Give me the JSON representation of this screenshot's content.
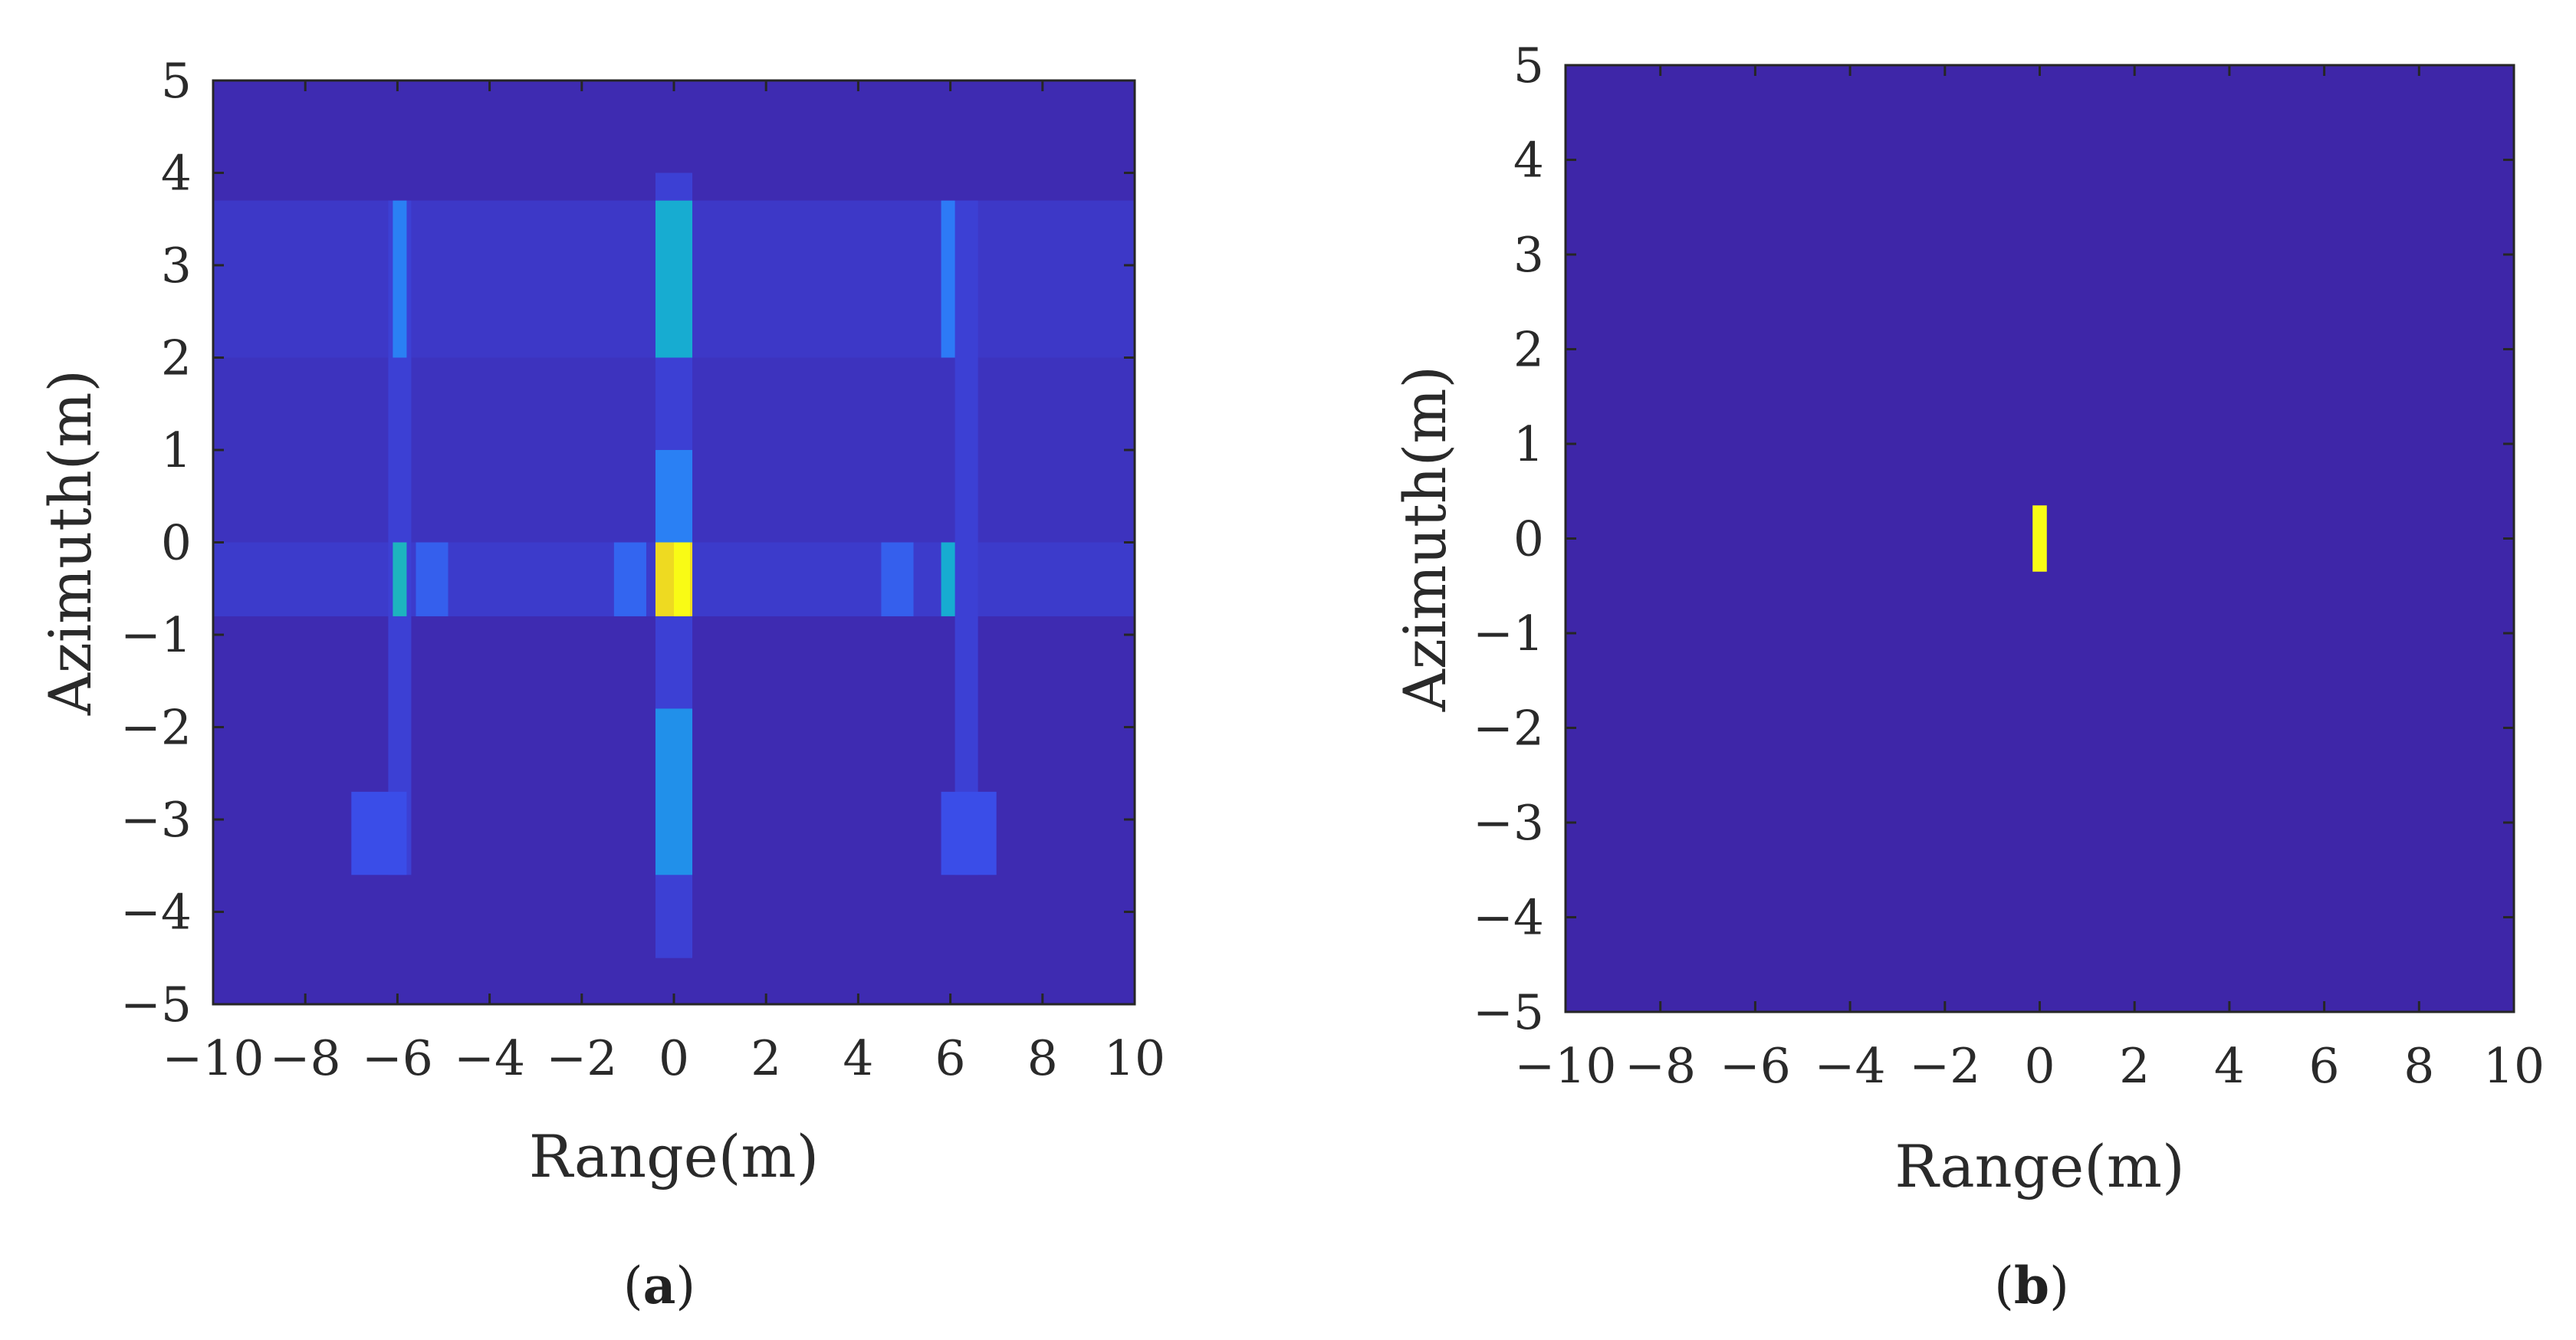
{
  "chart_data": [
    {
      "type": "heatmap",
      "panel_label": "a",
      "xlabel": "Range(m)",
      "ylabel": "Azimuth(m)",
      "xlim": [
        -10,
        10
      ],
      "ylim": [
        -5,
        5
      ],
      "xticks": [
        -10,
        -8,
        -6,
        -4,
        -2,
        0,
        2,
        4,
        6,
        8,
        10
      ],
      "yticks": [
        -5,
        -4,
        -3,
        -2,
        -1,
        0,
        1,
        2,
        3,
        4,
        5
      ],
      "xtick_labels": [
        "−10",
        "−8",
        "−6",
        "−4",
        "−2",
        "0",
        "2",
        "4",
        "6",
        "8",
        "10"
      ],
      "ytick_labels": [
        "−5",
        "−4",
        "−3",
        "−2",
        "−1",
        "0",
        "1",
        "2",
        "3",
        "4",
        "5"
      ],
      "colormap": [
        "#3e26a8",
        "#3b4be7",
        "#2c7cf7",
        "#14a8d9",
        "#25c0a4",
        "#8dc43a",
        "#e6c02b",
        "#f9fb15"
      ],
      "background_value": 0.02,
      "cells": [
        {
          "x": [
            -10,
            10
          ],
          "y": [
            -0.8,
            3.7
          ],
          "v": 0.05
        },
        {
          "x": [
            -10,
            10
          ],
          "y": [
            -0.8,
            0.0
          ],
          "v": 0.08
        },
        {
          "x": [
            -10,
            10
          ],
          "y": [
            2.0,
            3.7
          ],
          "v": 0.07
        },
        {
          "x": [
            -0.4,
            0.4
          ],
          "y": [
            -4.5,
            4.0
          ],
          "v": 0.1
        },
        {
          "x": [
            -0.4,
            0.4
          ],
          "y": [
            -3.6,
            -1.8
          ],
          "v": 0.35
        },
        {
          "x": [
            -0.4,
            0.4
          ],
          "y": [
            0.0,
            1.0
          ],
          "v": 0.3
        },
        {
          "x": [
            -0.4,
            0.4
          ],
          "y": [
            2.0,
            3.7
          ],
          "v": 0.45
        },
        {
          "x": [
            -0.4,
            0.4
          ],
          "y": [
            -0.8,
            0.0
          ],
          "v": 0.92
        },
        {
          "x": [
            0.0,
            0.35
          ],
          "y": [
            -0.8,
            0.0
          ],
          "v": 1.0
        },
        {
          "x": [
            -6.2,
            -5.7
          ],
          "y": [
            -3.6,
            3.7
          ],
          "v": 0.1
        },
        {
          "x": [
            6.1,
            6.6
          ],
          "y": [
            -3.6,
            3.7
          ],
          "v": 0.1
        },
        {
          "x": [
            -6.1,
            -5.8
          ],
          "y": [
            2.0,
            3.7
          ],
          "v": 0.3
        },
        {
          "x": [
            -6.1,
            -5.8
          ],
          "y": [
            -0.8,
            0.0
          ],
          "v": 0.5
        },
        {
          "x": [
            5.8,
            6.1
          ],
          "y": [
            2.0,
            3.7
          ],
          "v": 0.28
        },
        {
          "x": [
            5.8,
            6.1
          ],
          "y": [
            -0.8,
            0.0
          ],
          "v": 0.45
        },
        {
          "x": [
            -7.0,
            -5.8
          ],
          "y": [
            -3.6,
            -2.7
          ],
          "v": 0.15
        },
        {
          "x": [
            5.8,
            7.0
          ],
          "y": [
            -3.6,
            -2.7
          ],
          "v": 0.15
        },
        {
          "x": [
            -5.6,
            -4.9
          ],
          "y": [
            -0.8,
            0.0
          ],
          "v": 0.2
        },
        {
          "x": [
            -1.3,
            -0.6
          ],
          "y": [
            -0.8,
            0.0
          ],
          "v": 0.22
        },
        {
          "x": [
            4.5,
            5.2
          ],
          "y": [
            -0.8,
            0.0
          ],
          "v": 0.2
        }
      ]
    },
    {
      "type": "heatmap",
      "panel_label": "b",
      "xlabel": "Range(m)",
      "ylabel": "Azimuth(m)",
      "xlim": [
        -10,
        10
      ],
      "ylim": [
        -5,
        5
      ],
      "xticks": [
        -10,
        -8,
        -6,
        -4,
        -2,
        0,
        2,
        4,
        6,
        8,
        10
      ],
      "yticks": [
        -5,
        -4,
        -3,
        -2,
        -1,
        0,
        1,
        2,
        3,
        4,
        5
      ],
      "xtick_labels": [
        "−10",
        "−8",
        "−6",
        "−4",
        "−2",
        "0",
        "2",
        "4",
        "6",
        "8",
        "10"
      ],
      "ytick_labels": [
        "−5",
        "−4",
        "−3",
        "−2",
        "−1",
        "0",
        "1",
        "2",
        "3",
        "4",
        "5"
      ],
      "colormap": [
        "#3e26a8",
        "#3b4be7",
        "#2c7cf7",
        "#14a8d9",
        "#25c0a4",
        "#8dc43a",
        "#e6c02b",
        "#f9fb15"
      ],
      "background_value": 0.0,
      "cells": [
        {
          "x": [
            -0.15,
            0.15
          ],
          "y": [
            -0.35,
            0.35
          ],
          "v": 1.0
        }
      ]
    }
  ]
}
